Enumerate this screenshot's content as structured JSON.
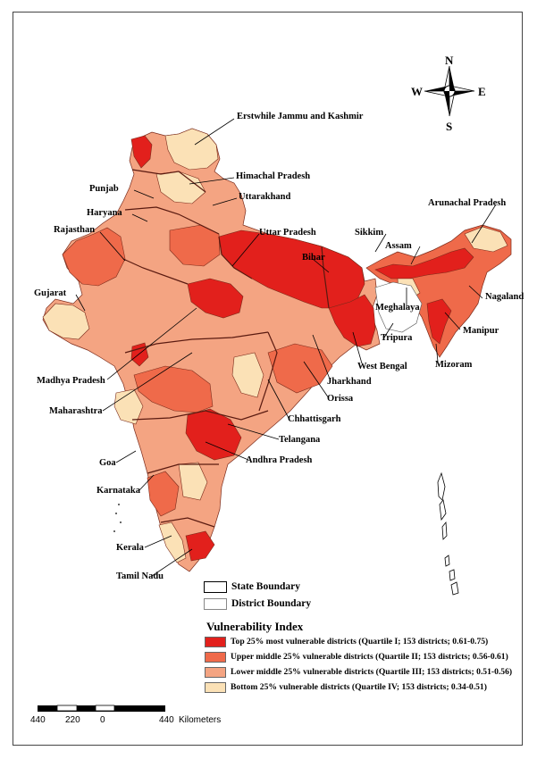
{
  "colors": {
    "q1": "#e2201c",
    "q2": "#ef6a4a",
    "q3": "#f4a482",
    "q4": "#fbe1b6"
  },
  "compass": {
    "n": "N",
    "s": "S",
    "e": "E",
    "w": "W"
  },
  "labels": {
    "jammu_kashmir": "Erstwhile Jammu and Kashmir",
    "himachal": "Himachal Pradesh",
    "punjab": "Punjab",
    "uttarakhand": "Uttarakhand",
    "haryana": "Haryana",
    "rajasthan": "Rajasthan",
    "uttar_pradesh": "Uttar Pradesh",
    "sikkim": "Sikkim",
    "arunachal": "Arunachal Pradesh",
    "assam": "Assam",
    "bihar": "Bihar",
    "gujarat": "Gujarat",
    "nagaland": "Nagaland",
    "meghalaya": "Meghalaya",
    "manipur": "Manipur",
    "tripura": "Tripura",
    "mizoram": "Mizoram",
    "west_bengal": "West Bengal",
    "madhya_pradesh": "Madhya Pradesh",
    "jharkhand": "Jharkhand",
    "orissa": "Orissa",
    "maharashtra": "Maharashtra",
    "chhattisgarh": "Chhattisgarh",
    "telangana": "Telangana",
    "andhra": "Andhra Pradesh",
    "goa": "Goa",
    "karnataka": "Karnataka",
    "kerala": "Kerala",
    "tamil_nadu": "Tamil Nadu"
  },
  "boundary_legend": {
    "state": "State Boundary",
    "district": "District Boundary"
  },
  "legend": {
    "title": "Vulnerability Index",
    "items": [
      "Top 25% most vulnerable districts (Quartile I; 153 districts; 0.61-0.75)",
      "Upper middle 25% vulnerable districts (Quartile II; 153 districts; 0.56-0.61)",
      "Lower middle 25% vulnerable districts (Quartile III; 153 districts; 0.51-0.56)",
      "Bottom 25% vulnerable districts (Quartile IV; 153 districts; 0.34-0.51)"
    ]
  },
  "scale": {
    "t1": "440",
    "t2": "220",
    "t3": "0",
    "t4": "440",
    "unit": "Kilometers"
  }
}
